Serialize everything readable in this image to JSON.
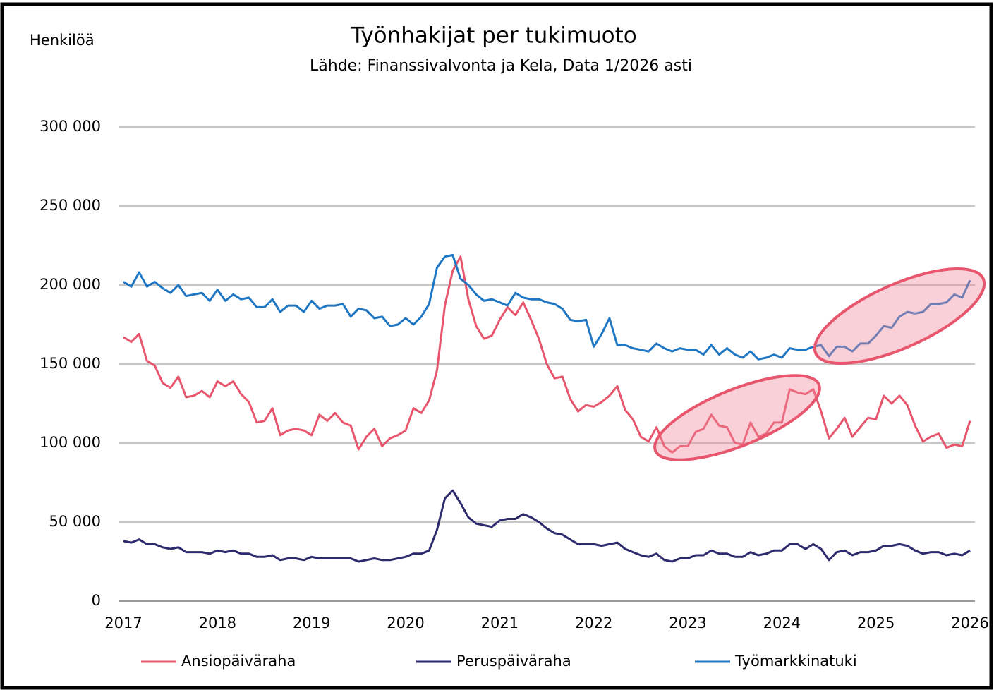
{
  "chart_data": {
    "type": "line",
    "title": "Työnhakijat per tukimuoto",
    "subtitle": "Lähde: Finanssivalvonta ja Kela, Data 1/2026 asti",
    "y_label": "Henkilöä",
    "categories": [
      "2017",
      null,
      null,
      null,
      null,
      null,
      null,
      null,
      null,
      null,
      null,
      null,
      "2018",
      null,
      null,
      null,
      null,
      null,
      null,
      null,
      null,
      null,
      null,
      null,
      "2019",
      null,
      null,
      null,
      null,
      null,
      null,
      null,
      null,
      null,
      null,
      null,
      "2020",
      null,
      null,
      null,
      null,
      null,
      null,
      null,
      null,
      null,
      null,
      null,
      "2021",
      null,
      null,
      null,
      null,
      null,
      null,
      null,
      null,
      null,
      null,
      null,
      "2022",
      null,
      null,
      null,
      null,
      null,
      null,
      null,
      null,
      null,
      null,
      null,
      "2023",
      null,
      null,
      null,
      null,
      null,
      null,
      null,
      null,
      null,
      null,
      null,
      "2024",
      null,
      null,
      null,
      null,
      null,
      null,
      null,
      null,
      null,
      null,
      null,
      "2025",
      null,
      null,
      null,
      null,
      null,
      null,
      null,
      null,
      null,
      null,
      null,
      "2026"
    ],
    "series": [
      {
        "name": "Ansiopäiväraha",
        "color": "#e8566e",
        "values": [
          167000,
          164000,
          169000,
          152000,
          149000,
          138000,
          135000,
          142000,
          129000,
          130000,
          133000,
          129000,
          139000,
          136000,
          139000,
          131000,
          126000,
          113000,
          114000,
          122000,
          105000,
          108000,
          109000,
          108000,
          105000,
          118000,
          114000,
          119000,
          113000,
          111000,
          96000,
          104000,
          109000,
          98000,
          103000,
          105000,
          108000,
          122000,
          119000,
          127000,
          146000,
          187000,
          209000,
          218000,
          191000,
          174000,
          166000,
          168000,
          178000,
          186000,
          181000,
          189000,
          178000,
          166000,
          150000,
          141000,
          142000,
          128000,
          120000,
          124000,
          123000,
          126000,
          130000,
          136000,
          121000,
          115000,
          104000,
          101000,
          110000,
          98000,
          94000,
          98000,
          98000,
          107000,
          109000,
          118000,
          111000,
          110000,
          100000,
          99000,
          113000,
          104000,
          106000,
          113000,
          113000,
          134000,
          132000,
          131000,
          134000,
          120000,
          103000,
          109000,
          116000,
          104000,
          110000,
          116000,
          115000,
          130000,
          125000,
          130000,
          124000,
          111000,
          101000,
          104000,
          106000,
          97000,
          99000,
          98000,
          114000
        ]
      },
      {
        "name": "Peruspäiväraha",
        "color": "#2e2a6e",
        "values": [
          38000,
          37000,
          39000,
          36000,
          36000,
          34000,
          33000,
          34000,
          31000,
          31000,
          31000,
          30000,
          32000,
          31000,
          32000,
          30000,
          30000,
          28000,
          28000,
          29000,
          26000,
          27000,
          27000,
          26000,
          28000,
          27000,
          27000,
          27000,
          27000,
          27000,
          25000,
          26000,
          27000,
          26000,
          26000,
          27000,
          28000,
          30000,
          30000,
          32000,
          45000,
          65000,
          70000,
          62000,
          53000,
          49000,
          48000,
          47000,
          51000,
          52000,
          52000,
          55000,
          53000,
          50000,
          46000,
          43000,
          42000,
          39000,
          36000,
          36000,
          36000,
          35000,
          36000,
          37000,
          33000,
          31000,
          29000,
          28000,
          30000,
          26000,
          25000,
          27000,
          27000,
          29000,
          29000,
          32000,
          30000,
          30000,
          28000,
          28000,
          31000,
          29000,
          30000,
          32000,
          32000,
          36000,
          36000,
          33000,
          36000,
          33000,
          26000,
          31000,
          32000,
          29000,
          31000,
          31000,
          32000,
          35000,
          35000,
          36000,
          35000,
          32000,
          30000,
          31000,
          31000,
          29000,
          30000,
          29000,
          32000
        ]
      },
      {
        "name": "Työmarkkinatuki",
        "color": "#1f77c4",
        "values": [
          202000,
          199000,
          208000,
          199000,
          202000,
          198000,
          195000,
          200000,
          193000,
          194000,
          195000,
          190000,
          197000,
          190000,
          194000,
          191000,
          192000,
          186000,
          186000,
          191000,
          183000,
          187000,
          187000,
          183000,
          190000,
          185000,
          187000,
          187000,
          188000,
          180000,
          185000,
          184000,
          179000,
          180000,
          174000,
          175000,
          179000,
          175000,
          180000,
          188000,
          211000,
          218000,
          219000,
          204000,
          200000,
          194000,
          190000,
          191000,
          189000,
          187000,
          195000,
          192000,
          191000,
          191000,
          189000,
          188000,
          185000,
          178000,
          177000,
          178000,
          161000,
          169000,
          179000,
          162000,
          162000,
          160000,
          159000,
          158000,
          163000,
          160000,
          158000,
          160000,
          159000,
          159000,
          156000,
          162000,
          156000,
          160000,
          156000,
          154000,
          158000,
          153000,
          154000,
          156000,
          154000,
          160000,
          159000,
          159000,
          161000,
          162000,
          155000,
          161000,
          161000,
          158000,
          163000,
          163000,
          168000,
          174000,
          173000,
          180000,
          183000,
          182000,
          183000,
          188000,
          188000,
          189000,
          194000,
          192000,
          203000
        ]
      }
    ],
    "ylim": [
      0,
      300000
    ],
    "yticks": [
      0,
      {
        "value": 50000,
        "label": "50 000"
      },
      {
        "value": 100000,
        "label": "100 000"
      },
      {
        "value": 150000,
        "label": "150 000"
      },
      {
        "value": 200000,
        "label": "200 000"
      },
      {
        "value": 250000,
        "label": "250 000"
      },
      {
        "value": 300000,
        "label": "300 000"
      }
    ],
    "grid": true,
    "legend": "bottom"
  }
}
